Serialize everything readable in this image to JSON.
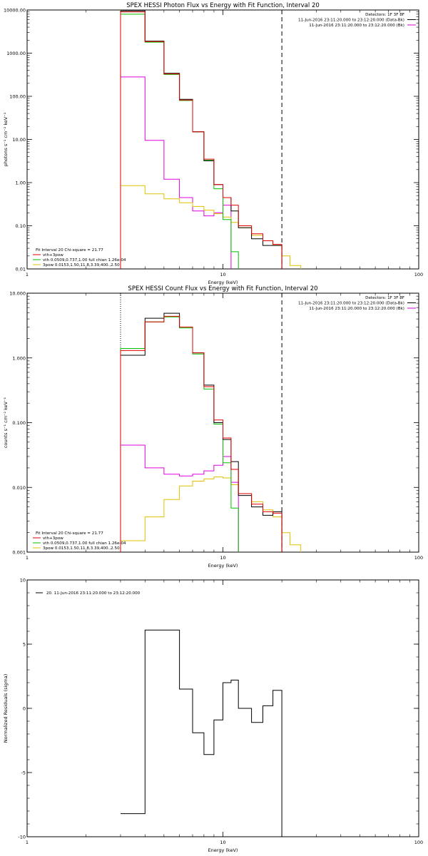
{
  "charts": [
    {
      "type": "step-line",
      "title": "SPEX HESSI Photon Flux vs Energy with Fit Function, Interval 20",
      "xlabel": "Energy (keV)",
      "ylabel": "photons s⁻¹ cm⁻² keV⁻¹",
      "xscale": "log",
      "yscale": "log",
      "xlim": [
        1,
        100
      ],
      "ylim": [
        0.01,
        10000
      ],
      "xticks": [
        "1",
        "10",
        "100"
      ],
      "yticks": [
        "0.01",
        "0.10",
        "1.00",
        "10.00",
        "100.00",
        "1000.00",
        "10000.00"
      ],
      "legend_top_right": [
        {
          "text": "Detectors: 1F 3F 8F",
          "color": ""
        },
        {
          "text": "11-Jun-2016 23:11:20.000 to 23:12:20.000 (Data-Bk)",
          "color": "#000000"
        },
        {
          "text": "11-Jun-2016 23:11:20.000 to 23:12:20.000 (Bk)",
          "color": "#e000e0"
        }
      ],
      "legend_bottom_left": [
        {
          "text": "Fit Interval 20   Chi-square = 21.77",
          "color": ""
        },
        {
          "text": "vth+3pow",
          "color": "#e00000"
        },
        {
          "text": "vth 0.0509,0.737,1.00  full chian 1.26e-04",
          "color": "#00c000"
        },
        {
          "text": "3pow 0.0153,1.50,11.8,3.39,400.,2.50",
          "color": "#e0c000"
        }
      ],
      "vlines": [
        {
          "x": 3,
          "style": "dotted",
          "color": "#e0c000"
        },
        {
          "x": 20,
          "style": "dashed",
          "color": "#000000"
        }
      ],
      "edges": [
        3.0,
        4.0,
        5.0,
        6.0,
        7.0,
        8.0,
        9.0,
        10.0,
        11.0,
        12.0,
        14.0,
        16.0,
        18.0,
        20.0,
        22.0,
        25.0
      ],
      "series": [
        {
          "color": "#e000e0",
          "values": [
            280,
            9.5,
            1.2,
            0.45,
            0.22,
            0.17,
            0.2,
            0.3,
            null,
            null,
            null,
            null,
            null,
            null,
            null
          ]
        },
        {
          "color": "#e0c000",
          "values": [
            0.85,
            0.55,
            0.42,
            0.34,
            0.28,
            0.23,
            0.19,
            0.16,
            0.12,
            0.09,
            0.06,
            0.045,
            0.035,
            0.02,
            0.012
          ]
        },
        {
          "color": "#00c000",
          "values": [
            8000,
            1800,
            320,
            80,
            15,
            3.3,
            0.72,
            0.14,
            0.025,
            null,
            null,
            null,
            null,
            null,
            null
          ]
        },
        {
          "color": "#000000",
          "values": [
            9500,
            1900,
            340,
            85,
            15,
            3.2,
            0.9,
            0.45,
            0.22,
            0.09,
            0.05,
            0.035,
            0.035,
            null,
            null
          ]
        },
        {
          "color": "#e00000",
          "values": [
            9000,
            1850,
            330,
            82,
            15,
            3.5,
            0.9,
            0.45,
            0.3,
            0.1,
            0.065,
            0.045,
            0.037,
            null,
            null
          ]
        }
      ]
    },
    {
      "type": "step-line",
      "title": "SPEX HESSI Count Flux vs Energy with Fit Function, Interval 20",
      "xlabel": "Energy (keV)",
      "ylabel": "counts s⁻¹ cm⁻² keV⁻¹",
      "xscale": "log",
      "yscale": "log",
      "xlim": [
        1,
        100
      ],
      "ylim": [
        0.001,
        10
      ],
      "xticks": [
        "1",
        "10",
        "100"
      ],
      "yticks": [
        "0.001",
        "0.010",
        "0.100",
        "1.000",
        "10.000"
      ],
      "legend_top_right": [
        {
          "text": "Detectors: 1F 3F 8F",
          "color": ""
        },
        {
          "text": "11-Jun-2016 23:11:20.000 to 23:12:20.000 (Data-Bk)",
          "color": "#000000"
        },
        {
          "text": "11-Jun-2016 23:11:20.000 to 23:12:20.000 (Bk)",
          "color": "#e000e0"
        }
      ],
      "legend_bottom_left": [
        {
          "text": "Fit Interval 20   Chi-square = 21.77",
          "color": ""
        },
        {
          "text": "vth+3pow",
          "color": "#e00000"
        },
        {
          "text": "vth 0.0509,0.737,1.00  full chian 1.26e-04",
          "color": "#00c000"
        },
        {
          "text": "3pow 0.0153,1.50,11.8,3.39,400.,2.50",
          "color": "#e0c000"
        }
      ],
      "vlines": [
        {
          "x": 3,
          "style": "dotted",
          "color": "#000000"
        },
        {
          "x": 20,
          "style": "dashed",
          "color": "#000000"
        }
      ],
      "edges": [
        3.0,
        4.0,
        5.0,
        6.0,
        7.0,
        8.0,
        9.0,
        10.0,
        11.0,
        12.0,
        14.0,
        16.0,
        18.0,
        20.0,
        22.0,
        25.0
      ],
      "series": [
        {
          "color": "#e000e0",
          "values": [
            0.045,
            0.02,
            0.016,
            0.015,
            0.016,
            0.018,
            0.022,
            0.03,
            0.012,
            null,
            null,
            null,
            null,
            null,
            null
          ]
        },
        {
          "color": "#e0c000",
          "values": [
            0.0015,
            0.0035,
            0.0065,
            0.0105,
            0.0125,
            0.0135,
            0.0145,
            0.014,
            0.011,
            0.008,
            0.006,
            0.0045,
            0.0035,
            0.002,
            0.0013
          ]
        },
        {
          "color": "#00c000",
          "values": [
            1.4,
            3.6,
            4.3,
            2.9,
            1.15,
            0.33,
            0.095,
            0.024,
            0.0048,
            null,
            null,
            null,
            null,
            null,
            null
          ]
        },
        {
          "color": "#000000",
          "values": [
            1.1,
            4.1,
            4.9,
            3.0,
            1.2,
            0.38,
            0.1,
            0.055,
            0.025,
            0.0075,
            0.005,
            0.0037,
            0.0042,
            null,
            null
          ]
        },
        {
          "color": "#e00000",
          "values": [
            1.3,
            3.6,
            4.4,
            3.0,
            1.2,
            0.36,
            0.11,
            0.058,
            0.019,
            0.008,
            0.0055,
            0.0042,
            0.004,
            null,
            null
          ]
        }
      ]
    },
    {
      "type": "step-line",
      "title": "",
      "xlabel": "Energy (keV)",
      "ylabel": "Normalized Residuals (sigma)",
      "xscale": "log",
      "yscale": "linear",
      "xlim": [
        1,
        100
      ],
      "ylim": [
        -10,
        10
      ],
      "xticks": [
        "1",
        "10",
        "100"
      ],
      "yticks": [
        "-10",
        "-5",
        "0",
        "5",
        "10"
      ],
      "legend_top_left": [
        {
          "text": "20. 11-Jun-2016 23:11:20.000 to 23:12:20.000",
          "color": "#000000"
        }
      ],
      "edges": [
        3.0,
        4.0,
        5.0,
        6.0,
        7.0,
        8.0,
        9.0,
        10.0,
        11.0,
        12.0,
        14.0,
        16.0,
        18.0,
        20.0
      ],
      "series": [
        {
          "color": "#000000",
          "values": [
            -8.2,
            6.1,
            6.1,
            1.5,
            -1.9,
            -3.6,
            -0.9,
            2.0,
            2.2,
            0.0,
            -1.1,
            0.2,
            1.4
          ]
        }
      ]
    }
  ]
}
